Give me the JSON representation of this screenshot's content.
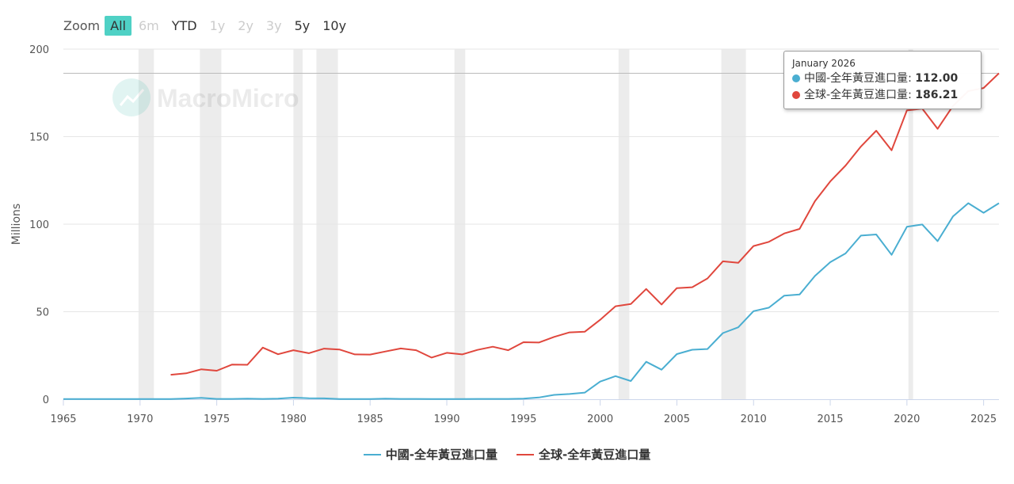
{
  "toolbar": {
    "zoom_label": "Zoom",
    "buttons": [
      {
        "label": "All",
        "state": "active"
      },
      {
        "label": "6m",
        "state": "disabled"
      },
      {
        "label": "YTD",
        "state": "normal"
      },
      {
        "label": "1y",
        "state": "disabled"
      },
      {
        "label": "2y",
        "state": "disabled"
      },
      {
        "label": "3y",
        "state": "disabled"
      },
      {
        "label": "5y",
        "state": "normal"
      },
      {
        "label": "10y",
        "state": "normal"
      }
    ]
  },
  "watermark": "MacroMicro",
  "tooltip": {
    "date": "January 2026",
    "rows": [
      {
        "name": "中國-全年黃豆進口量",
        "value": "112.00",
        "color": "#4aaed1"
      },
      {
        "name": "全球-全年黃豆進口量",
        "value": "186.21",
        "color": "#e0473d"
      }
    ]
  },
  "chart_data": {
    "type": "line",
    "title": "",
    "xlabel": "",
    "ylabel": "Millions",
    "xlim": [
      1965,
      2026
    ],
    "ylim": [
      0,
      200
    ],
    "x_ticks": [
      1965,
      1970,
      1975,
      1980,
      1985,
      1990,
      1995,
      2000,
      2005,
      2010,
      2015,
      2020,
      2025
    ],
    "y_ticks": [
      0,
      50,
      100,
      150,
      200
    ],
    "grid": "horizontal",
    "legend": "bottom-center",
    "recession_shading": [
      [
        1969.9,
        1970.9
      ],
      [
        1973.9,
        1975.3
      ],
      [
        1980.0,
        1980.6
      ],
      [
        1981.5,
        1982.9
      ],
      [
        1990.5,
        1991.2
      ],
      [
        2001.2,
        2001.9
      ],
      [
        2007.9,
        2009.5
      ],
      [
        2020.1,
        2020.4
      ]
    ],
    "crosshair_y": 186.21,
    "series": [
      {
        "name": "中國-全年黃豆進口量",
        "color": "#4aaed1",
        "x": [
          1965,
          1966,
          1967,
          1968,
          1969,
          1970,
          1971,
          1972,
          1973,
          1974,
          1975,
          1976,
          1977,
          1978,
          1979,
          1980,
          1981,
          1982,
          1983,
          1984,
          1985,
          1986,
          1987,
          1988,
          1989,
          1990,
          1991,
          1992,
          1993,
          1994,
          1995,
          1996,
          1997,
          1998,
          1999,
          2000,
          2001,
          2002,
          2003,
          2004,
          2005,
          2006,
          2007,
          2008,
          2009,
          2010,
          2011,
          2012,
          2013,
          2014,
          2015,
          2016,
          2017,
          2018,
          2019,
          2020,
          2021,
          2022,
          2023,
          2024,
          2025,
          2026
        ],
        "y": [
          0.1,
          0.1,
          0.1,
          0.1,
          0.1,
          0.1,
          0.1,
          0.1,
          0.4,
          0.8,
          0.2,
          0.2,
          0.3,
          0.2,
          0.3,
          0.9,
          0.6,
          0.5,
          0.1,
          0.1,
          0.1,
          0.3,
          0.2,
          0.2,
          0.1,
          0.1,
          0.1,
          0.2,
          0.2,
          0.2,
          0.3,
          1.0,
          2.5,
          3.0,
          3.8,
          10.1,
          13.2,
          10.4,
          21.4,
          16.9,
          25.8,
          28.3,
          28.7,
          37.8,
          41.1,
          50.3,
          52.3,
          59.2,
          59.8,
          70.4,
          78.3,
          83.3,
          93.5,
          94.1,
          82.5,
          98.5,
          99.8,
          90.3,
          104.4,
          112.0,
          106.5,
          112.0
        ]
      },
      {
        "name": "全球-全年黃豆進口量",
        "color": "#e0473d",
        "x": [
          1972,
          1973,
          1974,
          1975,
          1976,
          1977,
          1978,
          1979,
          1980,
          1981,
          1982,
          1983,
          1984,
          1985,
          1986,
          1987,
          1988,
          1989,
          1990,
          1991,
          1992,
          1993,
          1994,
          1995,
          1996,
          1997,
          1998,
          1999,
          2000,
          2001,
          2002,
          2003,
          2004,
          2005,
          2006,
          2007,
          2008,
          2009,
          2010,
          2011,
          2012,
          2013,
          2014,
          2015,
          2016,
          2017,
          2018,
          2019,
          2020,
          2021,
          2022,
          2023,
          2024,
          2025,
          2026
        ],
        "y": [
          14.0,
          14.8,
          17.1,
          16.3,
          19.8,
          19.7,
          29.5,
          25.7,
          28.0,
          26.3,
          28.9,
          28.4,
          25.6,
          25.5,
          27.3,
          29.0,
          28.0,
          23.8,
          26.5,
          25.6,
          28.2,
          30.0,
          28.0,
          32.6,
          32.4,
          35.6,
          38.2,
          38.6,
          45.4,
          53.1,
          54.4,
          63.0,
          54.1,
          63.5,
          64.0,
          69.0,
          78.8,
          77.9,
          87.5,
          89.9,
          94.7,
          97.3,
          113.1,
          124.4,
          133.5,
          144.4,
          153.4,
          142.2,
          165.0,
          166.0,
          154.5,
          167.5,
          176.0,
          177.8,
          186.21
        ]
      }
    ]
  }
}
